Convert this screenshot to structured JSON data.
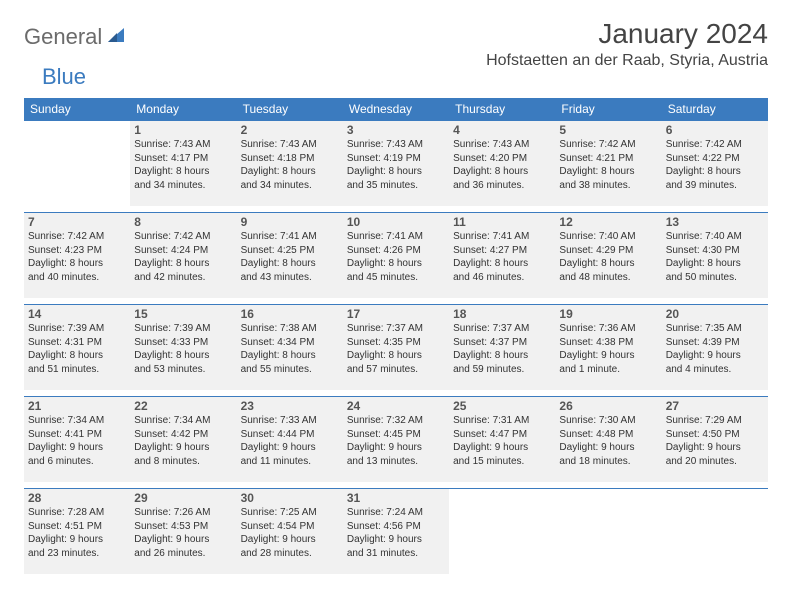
{
  "logo": {
    "text_general": "General",
    "text_blue": "Blue"
  },
  "title": "January 2024",
  "location": "Hofstaetten an der Raab, Styria, Austria",
  "colors": {
    "header_bg": "#3b7bbf",
    "header_text": "#ffffff",
    "cell_bg": "#f1f1f1",
    "cell_border": "#3b7bbf",
    "body_text": "#333333",
    "logo_gray": "#6b6b6b",
    "logo_blue": "#3b7bbf"
  },
  "fonts": {
    "title_size_pt": 21,
    "location_size_pt": 12,
    "header_size_pt": 9,
    "daynum_size_pt": 9,
    "info_size_pt": 7.5
  },
  "layout": {
    "columns": 7,
    "rows": 5,
    "aspect_ratio": "792:612"
  },
  "weekdays": [
    "Sunday",
    "Monday",
    "Tuesday",
    "Wednesday",
    "Thursday",
    "Friday",
    "Saturday"
  ],
  "weeks": [
    [
      null,
      {
        "num": "1",
        "sunrise": "Sunrise: 7:43 AM",
        "sunset": "Sunset: 4:17 PM",
        "daylight1": "Daylight: 8 hours",
        "daylight2": "and 34 minutes."
      },
      {
        "num": "2",
        "sunrise": "Sunrise: 7:43 AM",
        "sunset": "Sunset: 4:18 PM",
        "daylight1": "Daylight: 8 hours",
        "daylight2": "and 34 minutes."
      },
      {
        "num": "3",
        "sunrise": "Sunrise: 7:43 AM",
        "sunset": "Sunset: 4:19 PM",
        "daylight1": "Daylight: 8 hours",
        "daylight2": "and 35 minutes."
      },
      {
        "num": "4",
        "sunrise": "Sunrise: 7:43 AM",
        "sunset": "Sunset: 4:20 PM",
        "daylight1": "Daylight: 8 hours",
        "daylight2": "and 36 minutes."
      },
      {
        "num": "5",
        "sunrise": "Sunrise: 7:42 AM",
        "sunset": "Sunset: 4:21 PM",
        "daylight1": "Daylight: 8 hours",
        "daylight2": "and 38 minutes."
      },
      {
        "num": "6",
        "sunrise": "Sunrise: 7:42 AM",
        "sunset": "Sunset: 4:22 PM",
        "daylight1": "Daylight: 8 hours",
        "daylight2": "and 39 minutes."
      }
    ],
    [
      {
        "num": "7",
        "sunrise": "Sunrise: 7:42 AM",
        "sunset": "Sunset: 4:23 PM",
        "daylight1": "Daylight: 8 hours",
        "daylight2": "and 40 minutes."
      },
      {
        "num": "8",
        "sunrise": "Sunrise: 7:42 AM",
        "sunset": "Sunset: 4:24 PM",
        "daylight1": "Daylight: 8 hours",
        "daylight2": "and 42 minutes."
      },
      {
        "num": "9",
        "sunrise": "Sunrise: 7:41 AM",
        "sunset": "Sunset: 4:25 PM",
        "daylight1": "Daylight: 8 hours",
        "daylight2": "and 43 minutes."
      },
      {
        "num": "10",
        "sunrise": "Sunrise: 7:41 AM",
        "sunset": "Sunset: 4:26 PM",
        "daylight1": "Daylight: 8 hours",
        "daylight2": "and 45 minutes."
      },
      {
        "num": "11",
        "sunrise": "Sunrise: 7:41 AM",
        "sunset": "Sunset: 4:27 PM",
        "daylight1": "Daylight: 8 hours",
        "daylight2": "and 46 minutes."
      },
      {
        "num": "12",
        "sunrise": "Sunrise: 7:40 AM",
        "sunset": "Sunset: 4:29 PM",
        "daylight1": "Daylight: 8 hours",
        "daylight2": "and 48 minutes."
      },
      {
        "num": "13",
        "sunrise": "Sunrise: 7:40 AM",
        "sunset": "Sunset: 4:30 PM",
        "daylight1": "Daylight: 8 hours",
        "daylight2": "and 50 minutes."
      }
    ],
    [
      {
        "num": "14",
        "sunrise": "Sunrise: 7:39 AM",
        "sunset": "Sunset: 4:31 PM",
        "daylight1": "Daylight: 8 hours",
        "daylight2": "and 51 minutes."
      },
      {
        "num": "15",
        "sunrise": "Sunrise: 7:39 AM",
        "sunset": "Sunset: 4:33 PM",
        "daylight1": "Daylight: 8 hours",
        "daylight2": "and 53 minutes."
      },
      {
        "num": "16",
        "sunrise": "Sunrise: 7:38 AM",
        "sunset": "Sunset: 4:34 PM",
        "daylight1": "Daylight: 8 hours",
        "daylight2": "and 55 minutes."
      },
      {
        "num": "17",
        "sunrise": "Sunrise: 7:37 AM",
        "sunset": "Sunset: 4:35 PM",
        "daylight1": "Daylight: 8 hours",
        "daylight2": "and 57 minutes."
      },
      {
        "num": "18",
        "sunrise": "Sunrise: 7:37 AM",
        "sunset": "Sunset: 4:37 PM",
        "daylight1": "Daylight: 8 hours",
        "daylight2": "and 59 minutes."
      },
      {
        "num": "19",
        "sunrise": "Sunrise: 7:36 AM",
        "sunset": "Sunset: 4:38 PM",
        "daylight1": "Daylight: 9 hours",
        "daylight2": "and 1 minute."
      },
      {
        "num": "20",
        "sunrise": "Sunrise: 7:35 AM",
        "sunset": "Sunset: 4:39 PM",
        "daylight1": "Daylight: 9 hours",
        "daylight2": "and 4 minutes."
      }
    ],
    [
      {
        "num": "21",
        "sunrise": "Sunrise: 7:34 AM",
        "sunset": "Sunset: 4:41 PM",
        "daylight1": "Daylight: 9 hours",
        "daylight2": "and 6 minutes."
      },
      {
        "num": "22",
        "sunrise": "Sunrise: 7:34 AM",
        "sunset": "Sunset: 4:42 PM",
        "daylight1": "Daylight: 9 hours",
        "daylight2": "and 8 minutes."
      },
      {
        "num": "23",
        "sunrise": "Sunrise: 7:33 AM",
        "sunset": "Sunset: 4:44 PM",
        "daylight1": "Daylight: 9 hours",
        "daylight2": "and 11 minutes."
      },
      {
        "num": "24",
        "sunrise": "Sunrise: 7:32 AM",
        "sunset": "Sunset: 4:45 PM",
        "daylight1": "Daylight: 9 hours",
        "daylight2": "and 13 minutes."
      },
      {
        "num": "25",
        "sunrise": "Sunrise: 7:31 AM",
        "sunset": "Sunset: 4:47 PM",
        "daylight1": "Daylight: 9 hours",
        "daylight2": "and 15 minutes."
      },
      {
        "num": "26",
        "sunrise": "Sunrise: 7:30 AM",
        "sunset": "Sunset: 4:48 PM",
        "daylight1": "Daylight: 9 hours",
        "daylight2": "and 18 minutes."
      },
      {
        "num": "27",
        "sunrise": "Sunrise: 7:29 AM",
        "sunset": "Sunset: 4:50 PM",
        "daylight1": "Daylight: 9 hours",
        "daylight2": "and 20 minutes."
      }
    ],
    [
      {
        "num": "28",
        "sunrise": "Sunrise: 7:28 AM",
        "sunset": "Sunset: 4:51 PM",
        "daylight1": "Daylight: 9 hours",
        "daylight2": "and 23 minutes."
      },
      {
        "num": "29",
        "sunrise": "Sunrise: 7:26 AM",
        "sunset": "Sunset: 4:53 PM",
        "daylight1": "Daylight: 9 hours",
        "daylight2": "and 26 minutes."
      },
      {
        "num": "30",
        "sunrise": "Sunrise: 7:25 AM",
        "sunset": "Sunset: 4:54 PM",
        "daylight1": "Daylight: 9 hours",
        "daylight2": "and 28 minutes."
      },
      {
        "num": "31",
        "sunrise": "Sunrise: 7:24 AM",
        "sunset": "Sunset: 4:56 PM",
        "daylight1": "Daylight: 9 hours",
        "daylight2": "and 31 minutes."
      },
      null,
      null,
      null
    ]
  ]
}
